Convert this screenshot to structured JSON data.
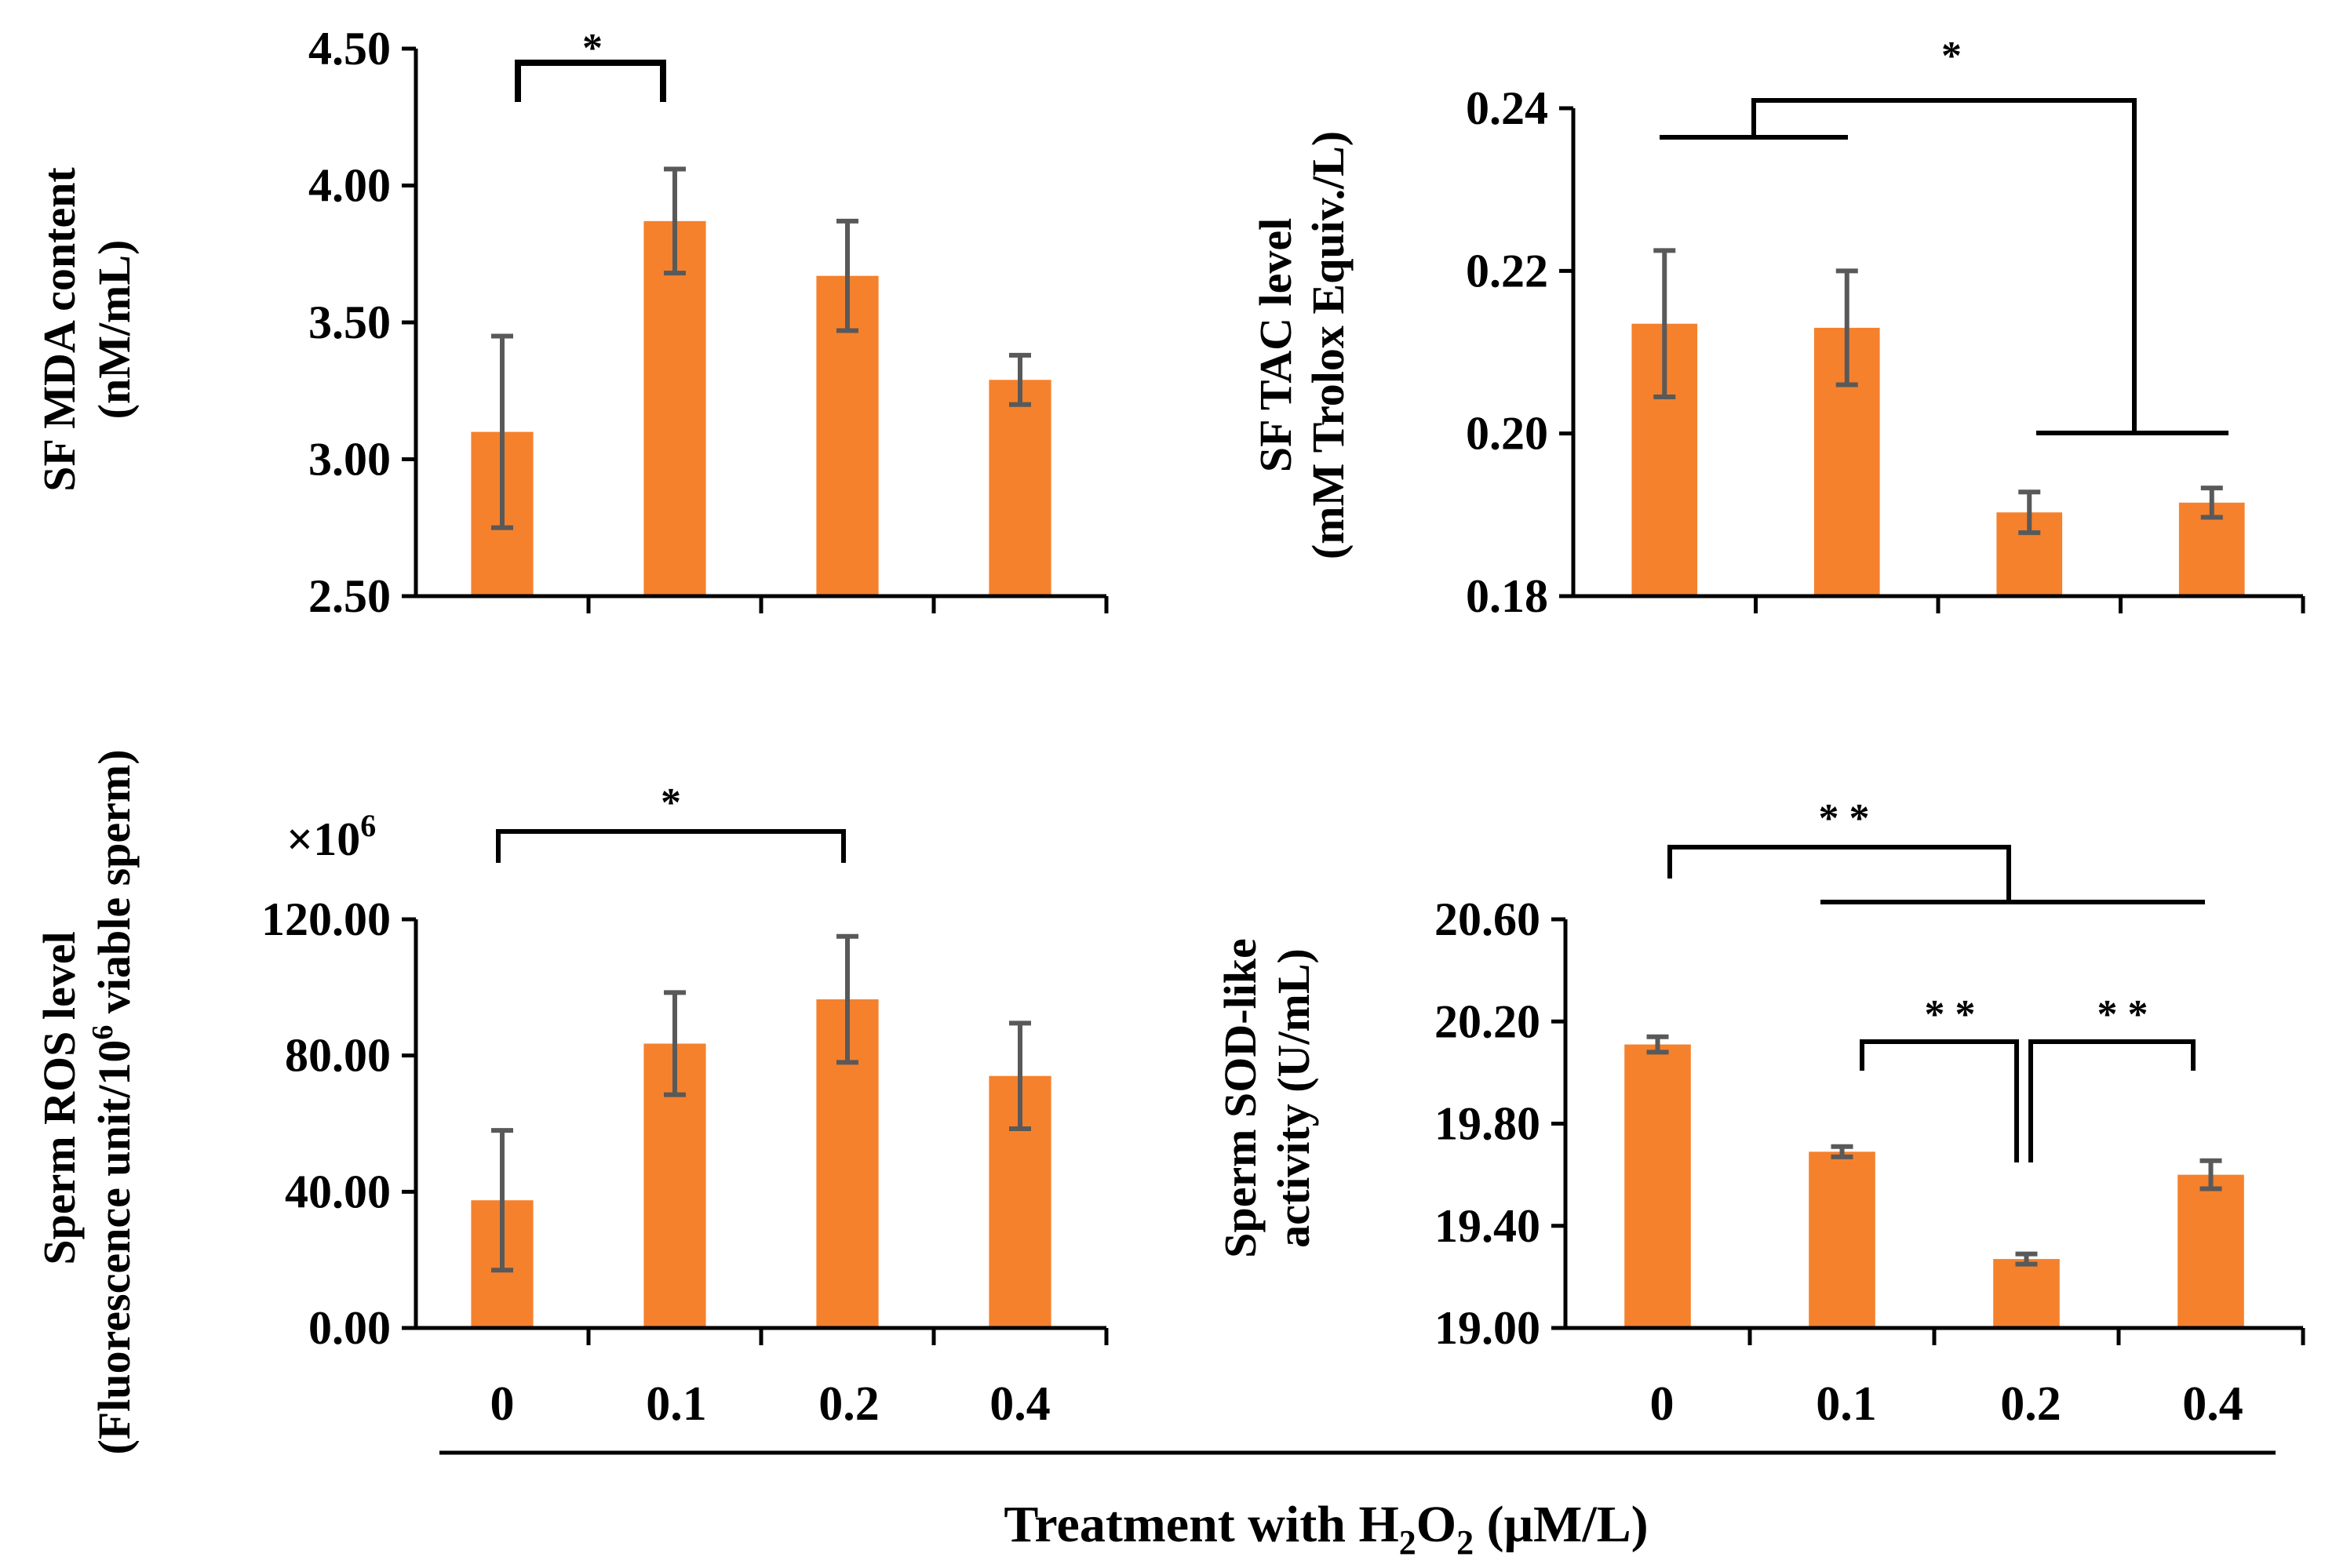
{
  "chart_data": [
    {
      "id": "mda",
      "type": "bar",
      "ylabel_line1": "SF MDA content",
      "ylabel_line2": "(nM/mL)",
      "categories": [
        "0",
        "0.1",
        "0.2",
        "0.4"
      ],
      "values": [
        3.1,
        3.87,
        3.67,
        3.29
      ],
      "errors": [
        0.35,
        0.19,
        0.2,
        0.09
      ],
      "ylim": [
        2.5,
        4.5
      ],
      "yticks": [
        "2.50",
        "3.00",
        "3.50",
        "4.00",
        "4.50"
      ],
      "significance": [
        "*"
      ]
    },
    {
      "id": "tac",
      "type": "bar",
      "ylabel_line1": "SF TAC level",
      "ylabel_line2": "(mM Trolox Equiv./L)",
      "categories": [
        "0",
        "0.1",
        "0.2",
        "0.4"
      ],
      "values": [
        0.2135,
        0.213,
        0.1903,
        0.1915
      ],
      "errors": [
        0.009,
        0.007,
        0.0025,
        0.0018
      ],
      "ylim": [
        0.18,
        0.24
      ],
      "yticks": [
        "0.18",
        "0.20",
        "0.22",
        "0.24"
      ],
      "significance": [
        "*"
      ]
    },
    {
      "id": "ros",
      "type": "bar",
      "ylabel_line1": "Sperm ROS level",
      "ylabel_line2_pre": "(Fluorescence unit/10",
      "ylabel_line2_sup": "6",
      "ylabel_line2_post": " viable sperm)",
      "multiplier_base": "×10",
      "multiplier_exp": "6",
      "categories": [
        "0",
        "0.1",
        "0.2",
        "0.4"
      ],
      "values": [
        37.5,
        83.5,
        96.5,
        74.0
      ],
      "errors": [
        20.5,
        15.0,
        18.5,
        15.5
      ],
      "ylim": [
        0,
        120
      ],
      "yticks": [
        "0.00",
        "40.00",
        "80.00",
        "120.00"
      ],
      "significance": [
        "*"
      ]
    },
    {
      "id": "sod",
      "type": "bar",
      "ylabel_line1": "Sperm SOD-like",
      "ylabel_line2": "activity (U/mL)",
      "categories": [
        "0",
        "0.1",
        "0.2",
        "0.4"
      ],
      "values": [
        20.11,
        19.69,
        19.27,
        19.6
      ],
      "errors": [
        0.03,
        0.02,
        0.02,
        0.055
      ],
      "ylim": [
        19.0,
        20.6
      ],
      "yticks": [
        "19.00",
        "19.40",
        "19.80",
        "20.20",
        "20.60"
      ],
      "significance": [
        "* *",
        "* *",
        "* *"
      ]
    }
  ],
  "xaxis": {
    "title_pre": "Treatment with H",
    "title_sub1": "2",
    "title_mid": "O",
    "title_sub2": "2",
    "title_post": " (μM/L)",
    "tick_labels": [
      "0",
      "0.1",
      "0.2",
      "0.4"
    ]
  },
  "colors": {
    "bar": "#f5812d",
    "error": "#595959",
    "axis": "#000000"
  }
}
